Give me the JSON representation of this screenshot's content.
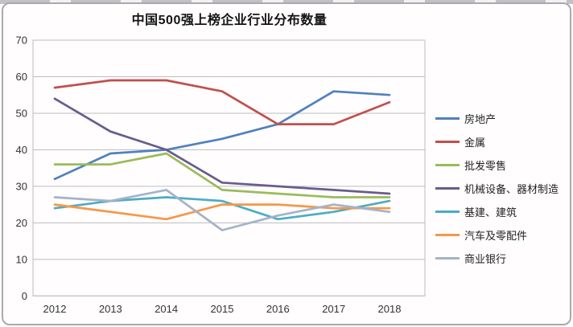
{
  "window": {
    "background": "#ffffff",
    "frame_border_color": "#a9a9ad"
  },
  "chart_data": {
    "type": "line",
    "title": "中国500强上榜企业行业分布数量",
    "xlabel": "",
    "ylabel": "",
    "x_categories": [
      "2012",
      "2013",
      "2014",
      "2015",
      "2016",
      "2017",
      "2018"
    ],
    "ylim": [
      0,
      70
    ],
    "yticks": [
      0,
      10,
      20,
      30,
      40,
      50,
      60,
      70
    ],
    "grid": true,
    "gridline_color": "#bdbdbd",
    "axis_label_color": "#333333",
    "legend_position": "right",
    "series": [
      {
        "name": "房地产",
        "color": "#4F81BD",
        "values": [
          32,
          39,
          40,
          43,
          47,
          56,
          55
        ]
      },
      {
        "name": "金属",
        "color": "#C0504D",
        "values": [
          57,
          59,
          59,
          56,
          47,
          47,
          53
        ]
      },
      {
        "name": "批发零售",
        "color": "#9BBB59",
        "values": [
          36,
          36,
          39,
          29,
          28,
          27,
          27
        ]
      },
      {
        "name": "机械设备、器材制造",
        "color": "#6A5B8E",
        "values": [
          54,
          45,
          40,
          31,
          30,
          29,
          28
        ]
      },
      {
        "name": "基建、建筑",
        "color": "#4BACC6",
        "values": [
          24,
          26,
          27,
          26,
          21,
          23,
          26
        ]
      },
      {
        "name": "汽车及零配件",
        "color": "#F79646",
        "values": [
          25,
          23,
          21,
          25,
          25,
          24,
          24
        ]
      },
      {
        "name": "商业银行",
        "color": "#A4B3C9",
        "values": [
          27,
          26,
          29,
          18,
          22,
          25,
          23
        ]
      }
    ]
  }
}
